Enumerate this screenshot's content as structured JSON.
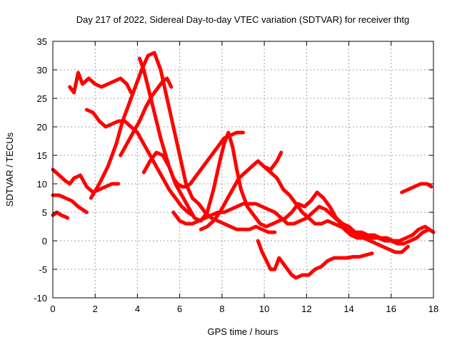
{
  "chart_data": {
    "type": "line",
    "title": "Day 217 of 2022, Sidereal Day-to-day VTEC variation (SDTVAR) for receiver thtg",
    "xlabel": "GPS time / hours",
    "ylabel": "SDTVAR / TECUs",
    "xlim": [
      0,
      18
    ],
    "ylim": [
      -10,
      35
    ],
    "xticks": [
      0,
      2,
      4,
      6,
      8,
      10,
      12,
      14,
      16,
      18
    ],
    "yticks": [
      -10,
      -5,
      0,
      5,
      10,
      15,
      20,
      25,
      30,
      35
    ],
    "grid": true,
    "color": "#ff0000",
    "series": [
      {
        "name": "s1",
        "x": [
          0.0,
          0.3,
          0.6,
          0.8,
          1.0,
          1.3,
          1.6,
          1.9,
          2.2,
          2.5,
          2.8,
          3.1
        ],
        "y": [
          12.5,
          11.5,
          10.5,
          10.0,
          11.0,
          11.5,
          9.5,
          8.5,
          9.0,
          9.5,
          10.0,
          10.0
        ]
      },
      {
        "name": "s2",
        "x": [
          0.0,
          0.3,
          0.6,
          0.9,
          1.2,
          1.6
        ],
        "y": [
          8.0,
          8.0,
          7.5,
          7.0,
          6.0,
          5.0
        ]
      },
      {
        "name": "s3",
        "x": [
          0.0,
          0.2,
          0.4,
          0.6,
          0.7
        ],
        "y": [
          4.5,
          5.0,
          4.5,
          4.2,
          4.0
        ]
      },
      {
        "name": "s4",
        "x": [
          0.8,
          1.0,
          1.2,
          1.4,
          1.7,
          2.0,
          2.3,
          2.6,
          2.9,
          3.2,
          3.5,
          3.7
        ],
        "y": [
          27.0,
          26.0,
          29.5,
          27.5,
          28.5,
          27.5,
          27.0,
          27.5,
          28.0,
          28.5,
          27.5,
          26.0
        ]
      },
      {
        "name": "s5",
        "x": [
          1.6,
          1.9,
          2.2,
          2.5,
          2.8,
          3.1,
          3.4,
          3.7,
          4.0,
          4.3,
          4.6,
          4.9,
          5.2,
          5.5,
          5.8,
          6.1,
          6.4,
          6.6
        ],
        "y": [
          23.0,
          22.5,
          21.0,
          20.0,
          20.5,
          21.0,
          21.0,
          20.0,
          19.0,
          17.0,
          15.0,
          13.0,
          11.0,
          9.0,
          7.5,
          6.0,
          5.0,
          4.5
        ]
      },
      {
        "name": "s6",
        "x": [
          1.8,
          2.2,
          2.6,
          3.0,
          3.3,
          3.6,
          3.9,
          4.2,
          4.5,
          4.8,
          5.1,
          5.4,
          5.7,
          6.0,
          6.3,
          6.6,
          6.9,
          7.2,
          7.5,
          7.8,
          8.1,
          8.4,
          8.7,
          9.0,
          9.3,
          9.6,
          9.9,
          10.2,
          10.5
        ],
        "y": [
          7.5,
          10.0,
          13.0,
          17.0,
          21.0,
          24.0,
          27.0,
          30.0,
          32.5,
          33.0,
          30.0,
          25.0,
          20.0,
          15.0,
          10.0,
          7.5,
          6.5,
          5.0,
          4.0,
          3.5,
          3.0,
          2.5,
          2.0,
          2.0,
          2.0,
          2.5,
          2.0,
          1.5,
          1.5
        ]
      },
      {
        "name": "s7",
        "x": [
          3.2,
          3.5,
          3.8,
          4.1,
          4.4,
          4.7,
          5.0,
          5.2,
          5.4,
          5.6
        ],
        "y": [
          15.0,
          17.0,
          19.0,
          21.0,
          23.5,
          25.5,
          27.0,
          28.0,
          28.5,
          27.0
        ]
      },
      {
        "name": "s8",
        "x": [
          4.1,
          4.3,
          4.5,
          4.7,
          4.9,
          5.1,
          5.3,
          5.5,
          5.7,
          5.9,
          6.1,
          6.3,
          6.5,
          6.7,
          6.9,
          7.2,
          7.5,
          7.8,
          8.1,
          8.4,
          8.7,
          9.0
        ],
        "y": [
          32.0,
          30.0,
          27.0,
          24.0,
          21.0,
          18.0,
          15.5,
          13.0,
          11.0,
          10.0,
          9.5,
          9.5,
          10.0,
          11.0,
          12.0,
          13.5,
          15.0,
          16.5,
          18.0,
          18.5,
          19.0,
          19.0
        ]
      },
      {
        "name": "s9",
        "x": [
          4.3,
          4.6,
          4.9,
          5.2,
          5.5,
          5.8,
          6.1,
          6.4,
          6.7,
          7.0,
          7.3,
          7.6,
          7.9,
          8.1,
          8.3,
          8.5,
          8.7,
          8.9,
          9.2,
          9.5,
          9.8,
          10.1,
          10.4,
          10.7,
          11.0
        ],
        "y": [
          12.0,
          14.0,
          15.5,
          15.0,
          13.0,
          10.0,
          8.0,
          6.0,
          4.0,
          3.5,
          5.0,
          9.0,
          14.0,
          17.0,
          19.0,
          16.5,
          12.5,
          9.0,
          6.0,
          4.5,
          3.0,
          2.5,
          3.0,
          3.5,
          4.0
        ]
      },
      {
        "name": "s10",
        "x": [
          5.7,
          6.0,
          6.3,
          6.6,
          6.9,
          7.2,
          7.5,
          7.8,
          8.1,
          8.4,
          8.7,
          9.0,
          9.3,
          9.6,
          9.9,
          10.2,
          10.5,
          10.8,
          11.1,
          11.4,
          11.7,
          12.0,
          12.3,
          12.6,
          12.9,
          13.2,
          13.5,
          13.8,
          14.1,
          14.4,
          14.7,
          15.0,
          15.3,
          15.6,
          15.9,
          16.2,
          16.5,
          16.8
        ],
        "y": [
          5.0,
          3.5,
          3.0,
          3.0,
          3.5,
          4.0,
          4.5,
          5.0,
          5.0,
          5.5,
          6.0,
          6.5,
          6.5,
          6.5,
          6.0,
          5.5,
          5.0,
          4.0,
          3.0,
          3.0,
          3.5,
          4.0,
          5.0,
          6.0,
          5.5,
          4.5,
          3.5,
          2.0,
          1.0,
          0.5,
          0.5,
          0.0,
          -0.5,
          -1.0,
          -1.5,
          -2.0,
          -2.0,
          -1.0
        ]
      },
      {
        "name": "s11",
        "x": [
          7.0,
          7.3,
          7.6,
          7.9,
          8.2,
          8.5,
          8.8,
          9.1,
          9.4,
          9.7,
          10.0,
          10.3,
          10.6,
          10.9,
          11.2,
          11.5,
          11.8,
          12.1,
          12.4,
          12.7,
          13.0,
          13.3,
          13.6,
          13.9,
          14.2,
          14.5,
          14.8,
          15.1,
          15.4,
          15.7,
          16.0,
          16.3,
          16.6,
          16.9,
          17.2,
          17.5,
          17.8,
          18.0
        ],
        "y": [
          2.0,
          2.5,
          3.5,
          5.0,
          7.0,
          9.0,
          11.0,
          12.0,
          13.0,
          14.0,
          13.0,
          12.0,
          11.0,
          9.0,
          8.0,
          6.5,
          5.0,
          4.0,
          3.0,
          3.0,
          3.5,
          3.0,
          2.5,
          2.0,
          1.5,
          1.0,
          1.0,
          0.5,
          0.5,
          0.0,
          0.0,
          -0.5,
          -0.5,
          0.0,
          0.5,
          1.5,
          2.0,
          1.5
        ]
      },
      {
        "name": "s12",
        "x": [
          10.0,
          10.3,
          10.6,
          10.8
        ],
        "y": [
          13.0,
          12.5,
          14.0,
          15.5
        ]
      },
      {
        "name": "s13",
        "x": [
          9.7,
          9.9,
          10.1,
          10.3,
          10.5,
          10.7,
          10.9,
          11.1,
          11.3,
          11.5,
          11.8,
          12.1,
          12.4,
          12.7,
          13.0,
          13.3,
          13.6,
          13.9,
          14.2,
          14.5,
          14.8,
          15.1
        ],
        "y": [
          0.0,
          -2.0,
          -3.5,
          -5.0,
          -5.0,
          -3.0,
          -4.0,
          -5.0,
          -6.0,
          -6.5,
          -6.0,
          -6.0,
          -5.0,
          -4.5,
          -3.5,
          -3.0,
          -3.0,
          -3.0,
          -2.8,
          -2.8,
          -2.5,
          -2.2
        ]
      },
      {
        "name": "s14",
        "x": [
          11.0,
          11.3,
          11.6,
          11.9,
          12.2,
          12.5,
          12.8,
          13.1,
          13.4,
          13.7,
          14.0,
          14.3,
          14.6,
          14.9,
          15.2,
          15.5,
          15.8,
          16.1,
          16.4,
          16.7,
          17.0,
          17.3,
          17.6,
          17.8
        ],
        "y": [
          4.0,
          5.0,
          6.5,
          6.0,
          7.0,
          8.5,
          7.5,
          6.0,
          4.0,
          3.0,
          2.5,
          1.5,
          1.5,
          1.0,
          1.0,
          0.5,
          0.5,
          0.0,
          0.0,
          0.5,
          1.0,
          2.0,
          2.5,
          2.0
        ]
      },
      {
        "name": "s15",
        "x": [
          16.5,
          16.8,
          17.1,
          17.4,
          17.7,
          17.9
        ],
        "y": [
          8.5,
          9.0,
          9.5,
          10.0,
          10.0,
          9.5
        ]
      }
    ]
  }
}
